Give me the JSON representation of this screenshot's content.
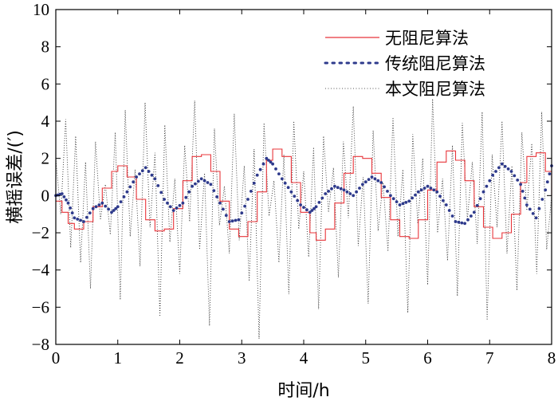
{
  "chart_data": {
    "type": "line",
    "title": "",
    "xlabel": "时间/h",
    "ylabel": "横摇误差/(′)",
    "xlim": [
      0,
      8
    ],
    "ylim": [
      -8,
      10
    ],
    "x_ticks": [
      "0",
      "1",
      "2",
      "3",
      "4",
      "5",
      "6",
      "7",
      "8"
    ],
    "y_ticks": [
      "−8",
      "−6",
      "−4",
      "−2",
      "0",
      "2",
      "4",
      "6",
      "8",
      "10"
    ],
    "legend_position": "top-right",
    "series": [
      {
        "name": "无阻尼算法",
        "color": "#e8353a",
        "style": "solid",
        "x": [
          0,
          0.1,
          0.2,
          0.3,
          0.45,
          0.6,
          0.75,
          0.9,
          1.0,
          1.15,
          1.3,
          1.45,
          1.6,
          1.75,
          1.9,
          2.05,
          2.2,
          2.35,
          2.5,
          2.65,
          2.8,
          2.95,
          3.1,
          3.25,
          3.4,
          3.5,
          3.65,
          3.8,
          3.95,
          4.1,
          4.2,
          4.35,
          4.5,
          4.65,
          4.8,
          4.95,
          5.1,
          5.25,
          5.4,
          5.55,
          5.7,
          5.85,
          6.0,
          6.15,
          6.3,
          6.45,
          6.6,
          6.75,
          6.9,
          7.05,
          7.2,
          7.35,
          7.5,
          7.6,
          7.75,
          7.9,
          8.0
        ],
        "values": [
          -0.3,
          -0.9,
          -1.5,
          -1.8,
          -1.4,
          -0.6,
          0.4,
          1.3,
          1.6,
          1.0,
          -0.2,
          -1.3,
          -1.9,
          -1.8,
          -0.7,
          0.8,
          2.1,
          2.2,
          1.3,
          -0.3,
          -1.8,
          -2.2,
          -1.4,
          0.2,
          1.9,
          2.5,
          2.1,
          0.7,
          -0.9,
          -2.0,
          -2.4,
          -1.8,
          -0.4,
          1.2,
          2.1,
          2.0,
          1.2,
          -0.1,
          -1.3,
          -2.2,
          -2.3,
          -1.3,
          0.3,
          1.8,
          2.4,
          1.9,
          0.8,
          -0.6,
          -1.7,
          -2.3,
          -2.0,
          -1.0,
          0.7,
          2.1,
          2.3,
          1.3,
          0.0
        ]
      },
      {
        "name": "传统阻尼算法",
        "color": "#2e3a8c",
        "style": "dotted",
        "x": [
          0,
          0.1,
          0.2,
          0.3,
          0.45,
          0.6,
          0.75,
          0.9,
          1.0,
          1.15,
          1.3,
          1.45,
          1.6,
          1.75,
          1.9,
          2.05,
          2.2,
          2.35,
          2.5,
          2.65,
          2.8,
          2.95,
          3.1,
          3.25,
          3.4,
          3.5,
          3.65,
          3.8,
          3.95,
          4.1,
          4.2,
          4.35,
          4.5,
          4.65,
          4.8,
          4.95,
          5.1,
          5.25,
          5.4,
          5.55,
          5.7,
          5.85,
          6.0,
          6.15,
          6.3,
          6.45,
          6.6,
          6.75,
          6.9,
          7.05,
          7.2,
          7.35,
          7.5,
          7.6,
          7.75,
          7.9,
          8.0
        ],
        "values": [
          0.0,
          0.1,
          -0.4,
          -1.2,
          -1.4,
          -0.7,
          -0.4,
          -0.9,
          -0.6,
          0.2,
          1.0,
          1.5,
          0.9,
          -0.2,
          -0.8,
          -0.4,
          0.5,
          0.9,
          0.6,
          -0.4,
          -1.4,
          -1.3,
          -0.2,
          1.1,
          2.0,
          1.7,
          0.9,
          0.2,
          -0.5,
          -0.9,
          -0.6,
          0.1,
          0.5,
          0.3,
          0.0,
          0.6,
          1.0,
          0.7,
          0.0,
          -0.5,
          -0.3,
          0.2,
          0.5,
          0.2,
          -0.5,
          -1.4,
          -1.5,
          -0.9,
          0.2,
          1.1,
          1.7,
          1.3,
          0.6,
          -0.5,
          -1.2,
          0.3,
          1.6
        ]
      },
      {
        "name": "本文阻尼算法",
        "color": "#333333",
        "style": "thin-dotted",
        "x": [
          0,
          0.08,
          0.16,
          0.24,
          0.32,
          0.4,
          0.48,
          0.56,
          0.64,
          0.72,
          0.8,
          0.88,
          0.96,
          1.04,
          1.12,
          1.2,
          1.28,
          1.36,
          1.44,
          1.52,
          1.6,
          1.68,
          1.76,
          1.84,
          1.92,
          2.0,
          2.08,
          2.16,
          2.24,
          2.32,
          2.4,
          2.48,
          2.56,
          2.64,
          2.72,
          2.8,
          2.88,
          2.96,
          3.04,
          3.12,
          3.2,
          3.28,
          3.36,
          3.44,
          3.52,
          3.6,
          3.68,
          3.76,
          3.84,
          3.92,
          4.0,
          4.08,
          4.16,
          4.24,
          4.32,
          4.4,
          4.48,
          4.56,
          4.64,
          4.72,
          4.8,
          4.88,
          4.96,
          5.04,
          5.12,
          5.2,
          5.28,
          5.36,
          5.44,
          5.52,
          5.6,
          5.68,
          5.76,
          5.84,
          5.92,
          6.0,
          6.08,
          6.16,
          6.24,
          6.32,
          6.4,
          6.48,
          6.56,
          6.64,
          6.72,
          6.8,
          6.88,
          6.96,
          7.04,
          7.12,
          7.2,
          7.28,
          7.36,
          7.44,
          7.52,
          7.6,
          7.68,
          7.76,
          7.84,
          7.92,
          8.0
        ],
        "values": [
          2.0,
          -1.0,
          4.1,
          -2.8,
          3.2,
          -3.6,
          1.8,
          -5.0,
          2.9,
          -1.3,
          0.6,
          -2.1,
          3.4,
          -5.6,
          4.6,
          -2.2,
          1.4,
          -3.8,
          5.0,
          -1.7,
          2.3,
          -6.5,
          3.8,
          -2.5,
          0.9,
          -4.2,
          2.7,
          -1.4,
          5.1,
          -2.9,
          1.2,
          -7.0,
          3.6,
          -1.6,
          0.5,
          -3.1,
          4.4,
          -2.4,
          1.6,
          -4.6,
          2.5,
          -7.7,
          3.9,
          -1.1,
          0.8,
          -3.6,
          2.2,
          -5.3,
          4.0,
          -1.8,
          1.3,
          -3.3,
          2.6,
          -6.1,
          3.2,
          -0.9,
          1.5,
          -4.4,
          2.9,
          -1.2,
          4.8,
          -2.7,
          1.0,
          -5.8,
          3.5,
          -1.9,
          0.7,
          -3.0,
          4.2,
          -2.2,
          1.4,
          -6.3,
          3.3,
          -1.5,
          2.0,
          -4.8,
          5.2,
          -2.0,
          0.9,
          -3.5,
          2.7,
          -5.4,
          3.9,
          -1.3,
          1.8,
          -2.6,
          4.5,
          -6.7,
          2.2,
          -1.7,
          4.0,
          -3.1,
          1.6,
          -5.1,
          3.4,
          -0.8,
          2.8,
          -4.2,
          4.5,
          -2.9,
          0.0
        ]
      }
    ]
  }
}
